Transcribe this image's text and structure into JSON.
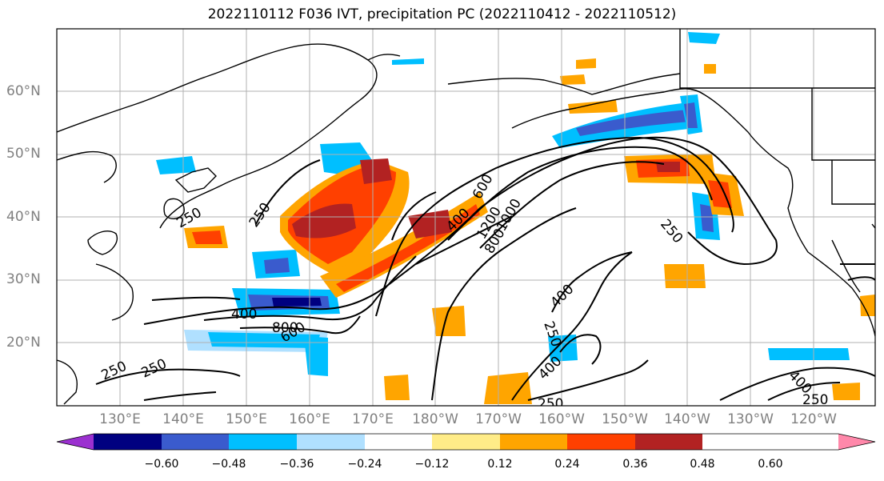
{
  "title": "2022110112 F036 IVT, precipitation PC (2022110412 - 2022110512)",
  "lat_labels": [
    "60°N",
    "50°N",
    "40°N",
    "30°N",
    "20°N"
  ],
  "lon_labels": [
    "130°E",
    "140°E",
    "150°E",
    "160°E",
    "170°E",
    "180°W",
    "170°W",
    "160°W",
    "150°W",
    "140°W",
    "130°W",
    "120°W"
  ],
  "colorbar": {
    "ticks": [
      "−0.60",
      "−0.48",
      "−0.36",
      "−0.24",
      "−0.12",
      "0.12",
      "0.24",
      "0.36",
      "0.48",
      "0.60"
    ],
    "colors": [
      "#9b30d0",
      "#000080",
      "#3a5bcd",
      "#00bfff",
      "#b0e0ff",
      "#ffffff",
      "#ffec88",
      "#ffa500",
      "#ff4000",
      "#b22222",
      "#ff88aa"
    ]
  },
  "contour_labels": [
    "250",
    "250",
    "250",
    "250",
    "250",
    "250",
    "250",
    "250",
    "400",
    "400",
    "400",
    "400",
    "400",
    "600",
    "600",
    "800",
    "800",
    "1000",
    "1200"
  ],
  "colors": {
    "grid": "#b0b0b0",
    "coast": "#000000",
    "contour": "#000000",
    "positive": "#ffa500",
    "negative": "#00bfff"
  }
}
